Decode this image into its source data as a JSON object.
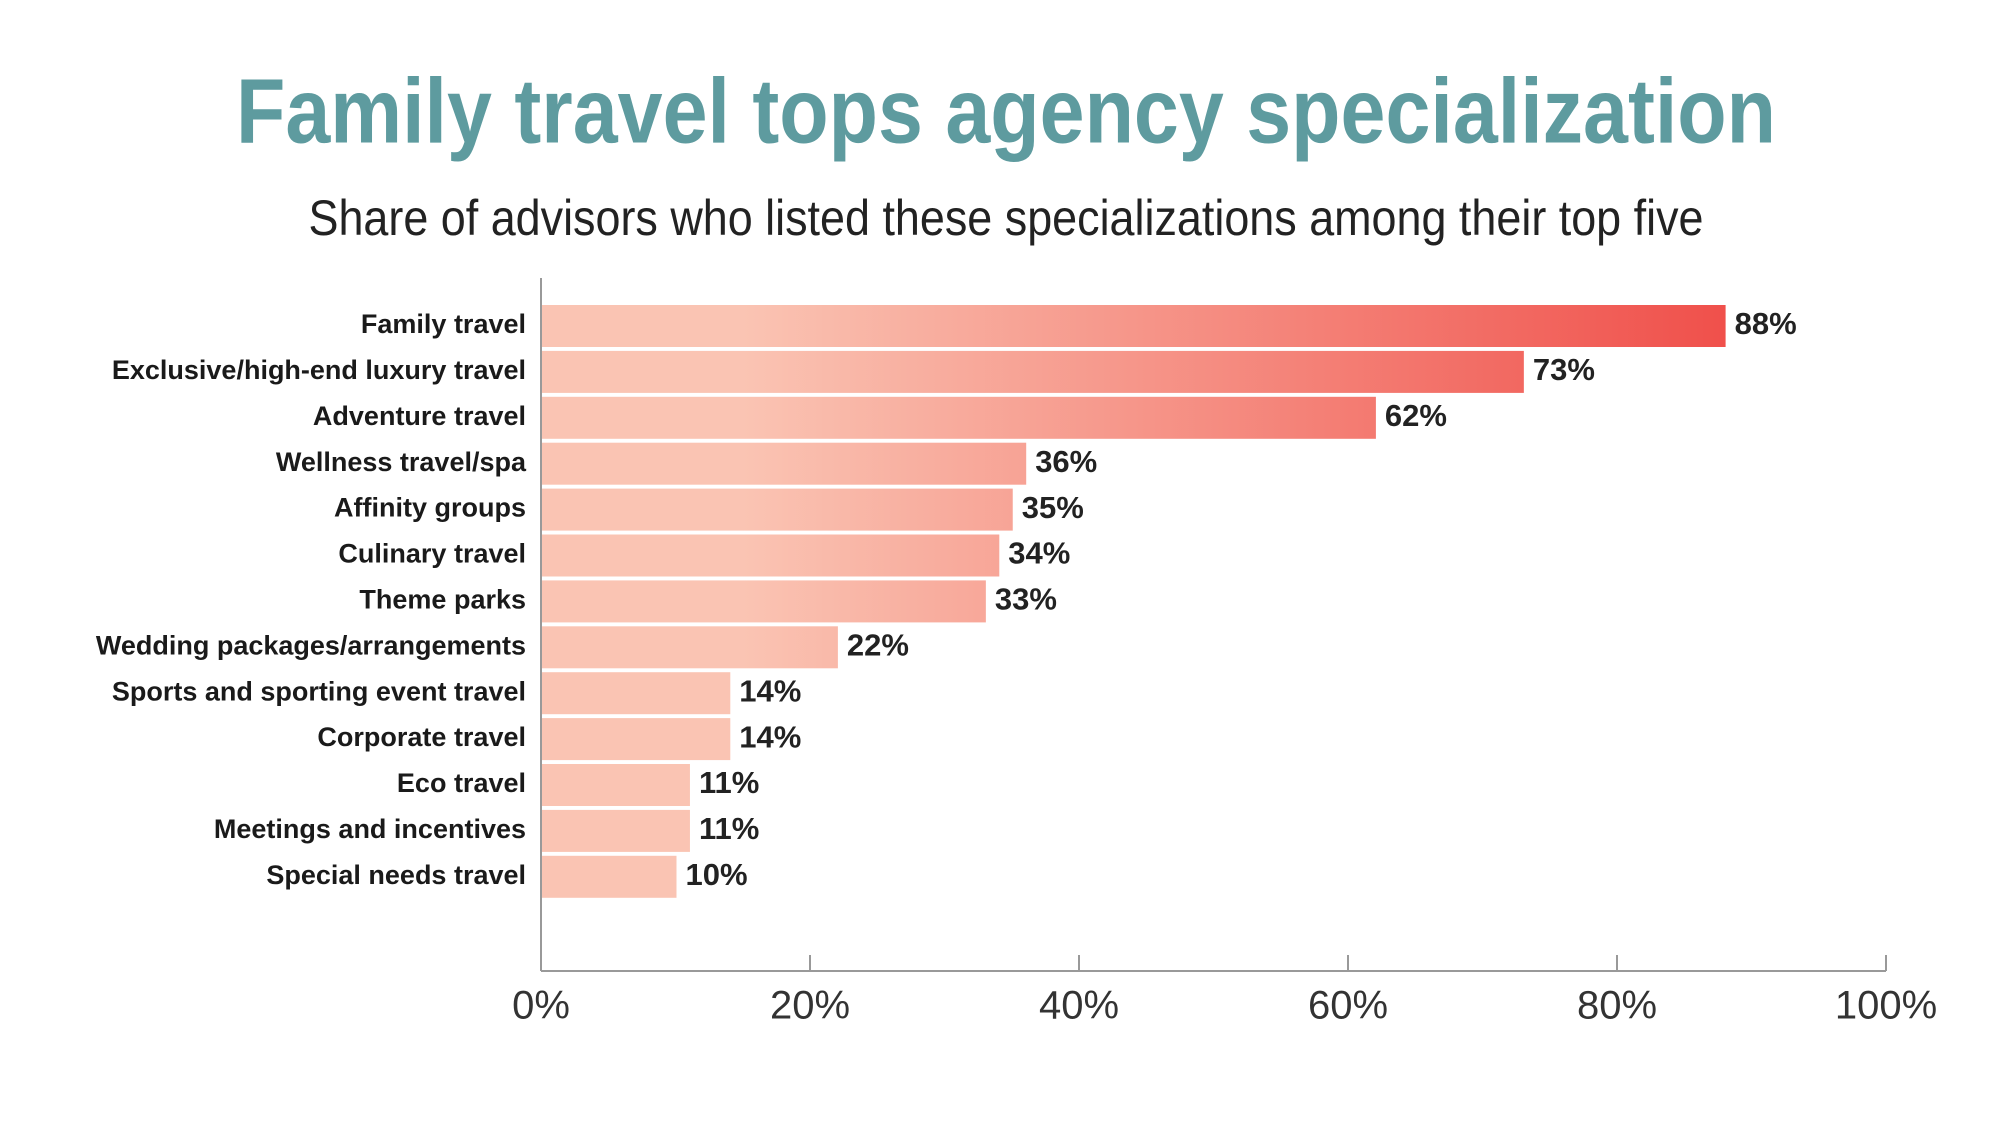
{
  "chart_data": {
    "type": "hbar",
    "title": "Family travel tops agency specialization",
    "subtitle": "Share of advisors who listed these specializations among their top five",
    "categories": [
      "Family travel",
      "Exclusive/high-end luxury travel",
      "Adventure travel",
      "Wellness travel/spa",
      "Affinity groups",
      "Culinary travel",
      "Theme parks",
      "Wedding packages/arrangements",
      "Sports and sporting event travel",
      "Corporate travel",
      "Eco travel",
      "Meetings and incentives",
      "Special needs travel"
    ],
    "values": [
      88,
      73,
      62,
      36,
      35,
      34,
      33,
      22,
      14,
      14,
      11,
      11,
      10
    ],
    "value_labels": [
      "88%",
      "73%",
      "62%",
      "36%",
      "35%",
      "34%",
      "33%",
      "22%",
      "14%",
      "14%",
      "11%",
      "11%",
      "10%"
    ],
    "colors": [
      "#fac4b3",
      "#ee3d3a"
    ],
    "xlim": [
      0,
      100
    ],
    "xticks": [
      {
        "value": 0,
        "label": "0%"
      },
      {
        "value": 20,
        "label": "20%"
      },
      {
        "value": 40,
        "label": "40%"
      },
      {
        "value": 60,
        "label": "60%"
      },
      {
        "value": 80,
        "label": "80%"
      },
      {
        "value": 100,
        "label": "100%"
      }
    ]
  }
}
